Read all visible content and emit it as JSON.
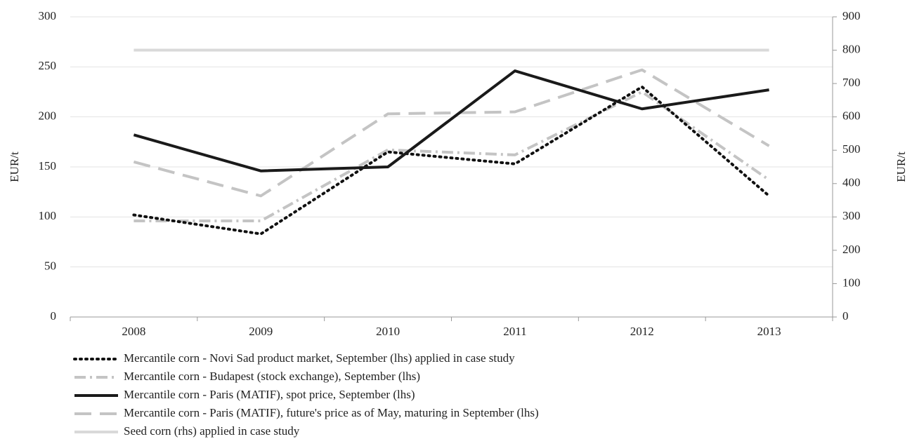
{
  "chart_data": {
    "type": "line",
    "y_label": "EUR/t",
    "y2_label": "EUR/t",
    "categories": [
      "2008",
      "2009",
      "2010",
      "2011",
      "2012",
      "2013"
    ],
    "series": [
      {
        "name": "Mercantile corn - Novi Sad product market, September (lhs) applied in case study",
        "color": "#111111",
        "style": "dotted",
        "values": [
          102,
          83,
          165,
          153,
          230,
          121
        ]
      },
      {
        "name": "Mercantile corn - Budapest (stock exchange), September (lhs)",
        "color": "#c4c4c4",
        "style": "dashdot",
        "values": [
          96,
          96,
          167,
          162,
          225,
          137
        ]
      },
      {
        "name": "Mercantile corn - Paris (MATIF), spot price, September (lhs)",
        "color": "#1a1a1a",
        "style": "solid",
        "values": [
          182,
          146,
          150,
          246,
          208,
          227
        ]
      },
      {
        "name": "Mercantile corn - Paris (MATIF), future's price as of May, maturing in September (lhs)",
        "color": "#c4c4c4",
        "style": "dashed",
        "values": [
          155,
          121,
          203,
          205,
          247,
          171
        ]
      },
      {
        "name": "Seed corn (rhs) applied in case study",
        "color": "#d9d9d9",
        "style": "solid",
        "axis": "y2",
        "values": [
          800,
          800,
          800,
          800,
          800,
          800
        ]
      }
    ],
    "ylim": [
      0,
      300
    ],
    "yticks": [
      0,
      50,
      100,
      150,
      200,
      250,
      300
    ],
    "y2lim": [
      0,
      900
    ],
    "y2ticks": [
      0,
      100,
      200,
      300,
      400,
      500,
      600,
      700,
      800,
      900
    ],
    "grid": true,
    "legend": "bottom"
  }
}
